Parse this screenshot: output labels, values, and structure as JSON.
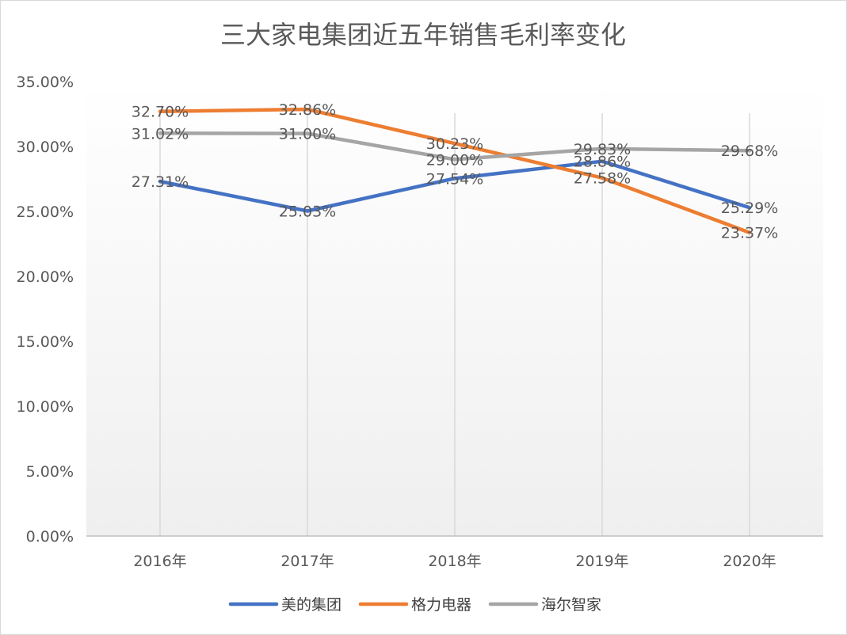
{
  "chart_data": {
    "type": "line",
    "title": "三大家电集团近五年销售毛利率变化",
    "xlabel": "",
    "ylabel": "",
    "categories": [
      "2016年",
      "2017年",
      "2018年",
      "2019年",
      "2020年"
    ],
    "y_ticks": [
      "0.00%",
      "5.00%",
      "10.00%",
      "15.00%",
      "20.00%",
      "25.00%",
      "30.00%",
      "35.00%"
    ],
    "ylim": [
      0,
      35
    ],
    "grid": "vertical",
    "legend_position": "bottom",
    "series": [
      {
        "name": "美的集团",
        "color": "#4472C4",
        "values": [
          27.31,
          25.03,
          27.54,
          28.86,
          25.29
        ],
        "labels": [
          "27.31%",
          "25.03%",
          "27.54%",
          "28.86%",
          "25.29%"
        ]
      },
      {
        "name": "格力电器",
        "color": "#ED7D31",
        "values": [
          32.7,
          32.86,
          30.23,
          27.58,
          23.37
        ],
        "labels": [
          "32.70%",
          "32.86%",
          "30.23%",
          "27.58%",
          "23.37%"
        ]
      },
      {
        "name": "海尔智家",
        "color": "#A5A5A5",
        "values": [
          31.02,
          31.0,
          29.0,
          29.83,
          29.68
        ],
        "labels": [
          "31.02%",
          "31.00%",
          "29.00%",
          "29.83%",
          "29.68%"
        ]
      }
    ]
  }
}
